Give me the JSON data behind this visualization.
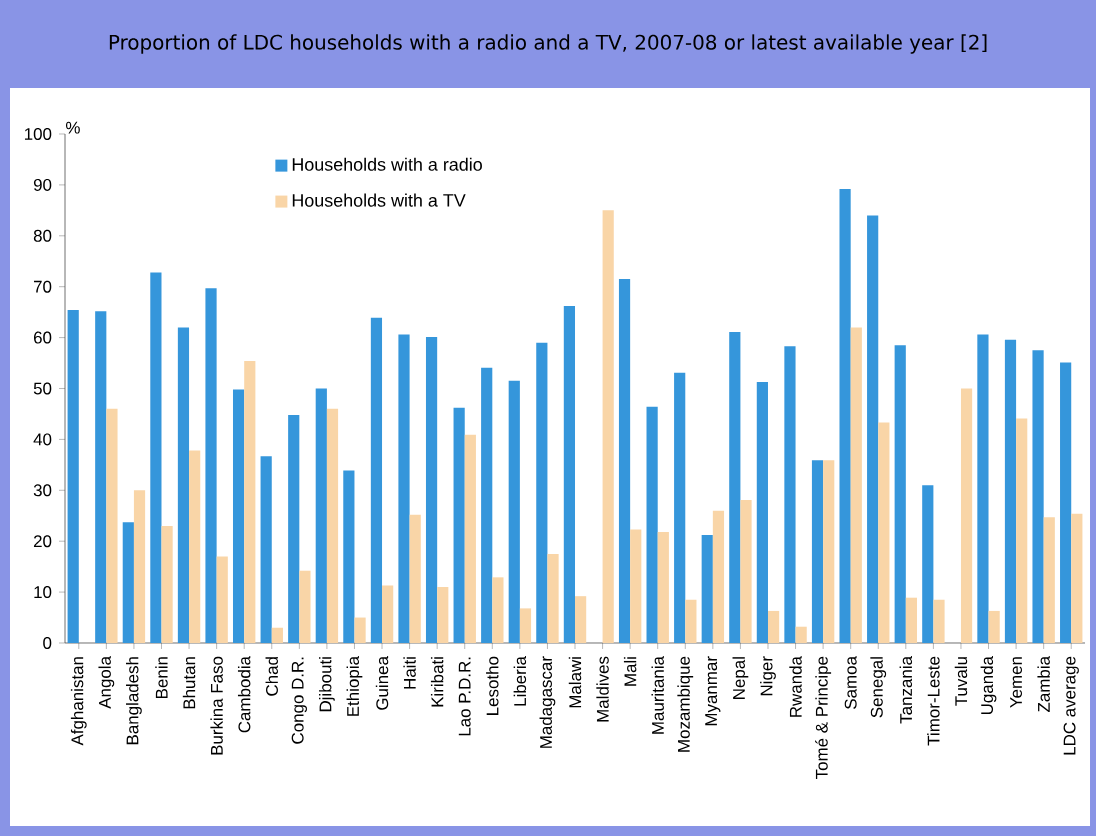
{
  "chart_data": {
    "type": "bar",
    "title": "Proportion of LDC households with a radio and a TV, 2007-08 or latest available year [2]",
    "ylabel": "%",
    "categories": [
      "Afghanistan",
      "Angola",
      "Bangladesh",
      "Benin",
      "Bhutan",
      "Burkina Faso",
      "Cambodia",
      "Chad",
      "Congo D.R.",
      "Djibouti",
      "Ethiopia",
      "Guinea",
      "Haiti",
      "Kiribati",
      "Lao P.D.R.",
      "Lesotho",
      "Liberia",
      "Madagascar",
      "Malawi",
      "Maldives",
      "Mali",
      "Mauritania",
      "Mozambique",
      "Myanmar",
      "Nepal",
      "Niger",
      "Rwanda",
      "Tomé & Principe",
      "Samoa",
      "Senegal",
      "Tanzania",
      "Timor-Leste",
      "Tuvalu",
      "Uganda",
      "Yemen",
      "Zambia",
      "LDC average"
    ],
    "series": [
      {
        "name": "Households with a radio",
        "color": "#3596db",
        "values": [
          65.4,
          65.2,
          23.7,
          72.8,
          62,
          69.7,
          49.8,
          36.7,
          44.8,
          50,
          33.9,
          63.9,
          60.6,
          60.1,
          46.2,
          54.1,
          51.5,
          59,
          66.2,
          null,
          71.5,
          46.4,
          53.1,
          21.2,
          61.1,
          51.3,
          58.3,
          35.9,
          89.2,
          84,
          58.5,
          31,
          null,
          60.6,
          59.6,
          57.5,
          55.1
        ]
      },
      {
        "name": "Households with a TV",
        "color": "#f9d5a7",
        "values": [
          null,
          46,
          30,
          23,
          37.8,
          17,
          55.4,
          3,
          14.2,
          46,
          5,
          11.3,
          25.2,
          11,
          40.9,
          12.9,
          6.8,
          17.5,
          9.2,
          85,
          22.3,
          21.8,
          8.5,
          26,
          28.1,
          6.3,
          3.2,
          35.9,
          62,
          43.3,
          8.9,
          8.5,
          50,
          6.3,
          44.1,
          24.7,
          25.4
        ]
      }
    ],
    "ylim": [
      0,
      100
    ],
    "yticks": [
      0,
      10,
      20,
      30,
      40,
      50,
      60,
      70,
      80,
      90,
      100
    ],
    "legend": "top left"
  }
}
